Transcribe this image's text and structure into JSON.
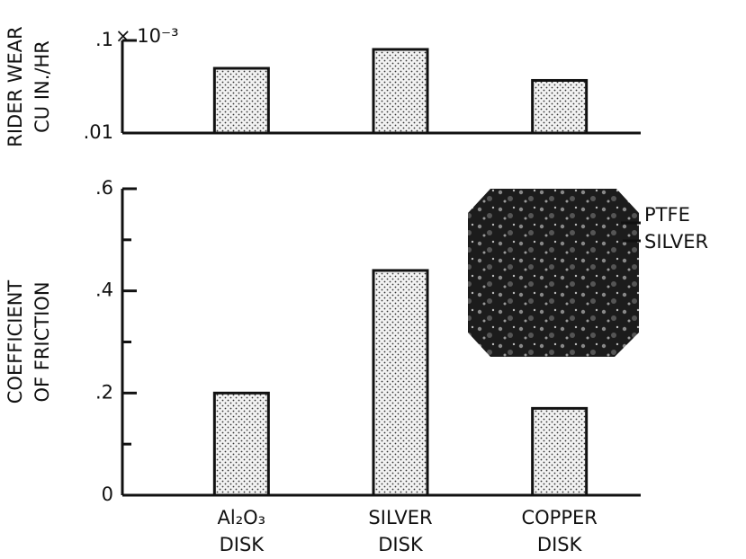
{
  "chart_data": [
    {
      "type": "bar",
      "y_label": [
        "RIDER WEAR",
        "CU IN./HR"
      ],
      "log_scale": true,
      "values": [
        0.05,
        0.08,
        0.037
      ],
      "color": "#e8e8e8",
      "ylim": [
        0.01,
        0.1
      ],
      "yticks": [
        {
          "value": 0.01,
          "label": ".01"
        },
        {
          "value": 0.1,
          "label": ".1"
        }
      ],
      "axis_multiplier": "× 10⁻³"
    },
    {
      "type": "bar",
      "y_label": [
        "COEFFICIENT",
        "OF FRICTION"
      ],
      "categories": [
        [
          "Al₂O₃",
          "DISK"
        ],
        [
          "SILVER",
          "DISK"
        ],
        [
          "COPPER",
          "DISK"
        ]
      ],
      "values": [
        0.2,
        0.44,
        0.17
      ],
      "color": "#e8e8e8",
      "ylim": [
        0,
        0.6
      ],
      "yticks": [
        0,
        {
          "value": 0.2,
          "label": ".2"
        },
        {
          "value": 0.4,
          "label": ".4"
        },
        {
          "value": 0.6,
          "label": ".6"
        }
      ],
      "yminor": [
        0.1,
        0.3,
        0.5
      ],
      "annotations": [
        "PTFE",
        "SILVER"
      ]
    }
  ]
}
